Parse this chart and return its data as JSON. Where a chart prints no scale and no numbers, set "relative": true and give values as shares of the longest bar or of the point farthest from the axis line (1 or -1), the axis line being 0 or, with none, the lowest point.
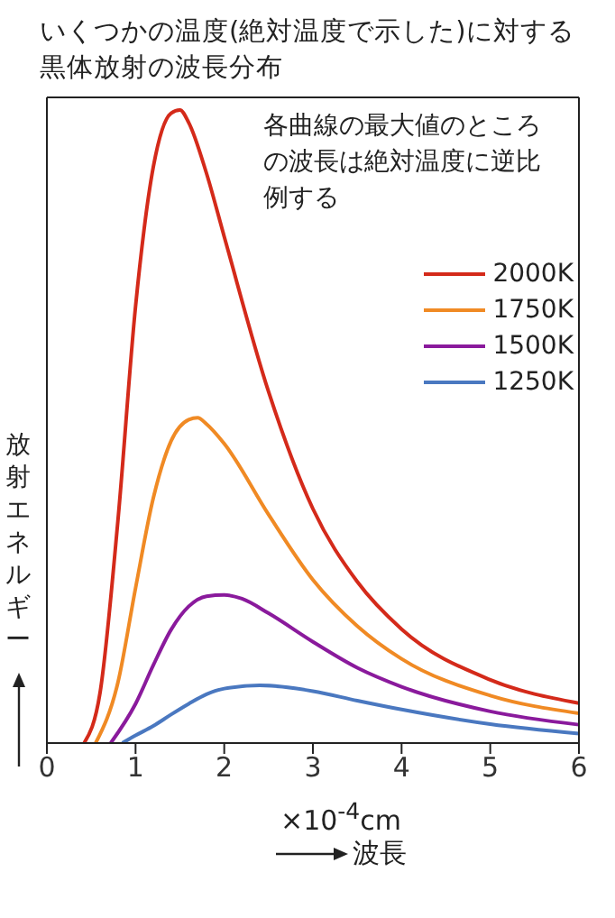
{
  "chart_data": {
    "type": "line",
    "title": "いくつかの温度(絶対温度で示した)に対する黒体放射の波長分布",
    "xlabel": "波長",
    "ylabel": "放射エネルギー",
    "annotations": [
      "×10$^{-4}$cm",
      "各曲線の最大値のところの波長は絶対温度に逆比例する"
    ],
    "relative": true,
    "xlim": [
      0,
      6
    ],
    "xticks": [
      0,
      1,
      2,
      3,
      4,
      5,
      6
    ],
    "grid": false,
    "legend": "top right",
    "marker": "none",
    "line_style": "solid",
    "series": [
      {
        "name": "2000K",
        "color": "#d42a1a",
        "x": [
          0.42,
          0.6,
          0.8,
          1.0,
          1.2,
          1.4,
          1.5,
          1.6,
          1.8,
          2.0,
          2.5,
          3.0,
          3.5,
          4.0,
          5.0,
          6.0
        ],
        "values": [
          0,
          0.08,
          0.35,
          0.69,
          0.91,
          0.995,
          1.0,
          0.98,
          0.9,
          0.8,
          0.555,
          0.37,
          0.255,
          0.18,
          0.1,
          0.063
        ]
      },
      {
        "name": "1750K",
        "color": "#f08a24",
        "x": [
          0.55,
          0.8,
          1.0,
          1.2,
          1.4,
          1.6,
          1.7,
          1.8,
          2.0,
          2.5,
          3.0,
          3.5,
          4.0,
          5.0,
          6.0
        ],
        "values": [
          0,
          0.095,
          0.245,
          0.387,
          0.477,
          0.511,
          0.514,
          0.504,
          0.473,
          0.361,
          0.258,
          0.185,
          0.133,
          0.075,
          0.047
        ]
      },
      {
        "name": "1500K",
        "color": "#8a1a9c",
        "x": [
          0.72,
          1.0,
          1.2,
          1.4,
          1.6,
          1.8,
          2.0,
          2.2,
          2.5,
          3.0,
          3.5,
          4.0,
          5.0,
          6.0
        ],
        "values": [
          0,
          0.062,
          0.123,
          0.179,
          0.216,
          0.232,
          0.234,
          0.228,
          0.205,
          0.16,
          0.119,
          0.089,
          0.05,
          0.029
        ]
      },
      {
        "name": "1250K",
        "color": "#4a78c0",
        "x": [
          0.85,
          1.0,
          1.2,
          1.4,
          1.6,
          1.8,
          2.0,
          2.4,
          3.0,
          3.5,
          4.0,
          5.0,
          6.0
        ],
        "values": [
          0,
          0.012,
          0.027,
          0.045,
          0.062,
          0.077,
          0.086,
          0.091,
          0.082,
          0.067,
          0.053,
          0.03,
          0.015
        ]
      }
    ]
  }
}
